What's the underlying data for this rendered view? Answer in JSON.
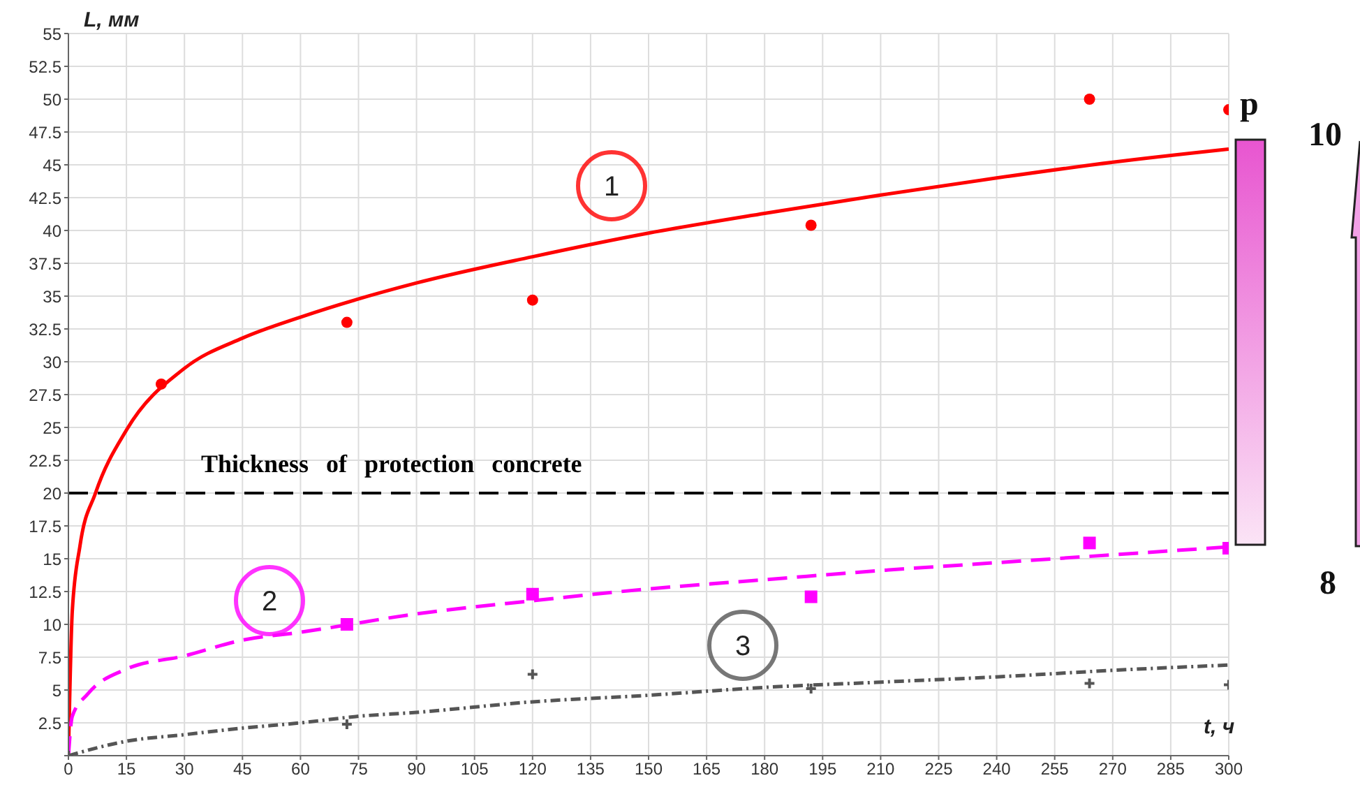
{
  "chart_data": {
    "type": "line",
    "xlabel": "t, ч",
    "ylabel": "L, мм",
    "xlim": [
      0,
      300
    ],
    "ylim": [
      0,
      55
    ],
    "xticks": [
      0,
      15,
      30,
      45,
      60,
      75,
      90,
      105,
      120,
      135,
      150,
      165,
      180,
      195,
      210,
      225,
      240,
      255,
      270,
      285,
      300
    ],
    "yticks": [
      {
        "value": 0,
        "label": null
      },
      2.5,
      5,
      7.5,
      10,
      12.5,
      15,
      17.5,
      20,
      22.5,
      25,
      27.5,
      30,
      32.5,
      35,
      37.5,
      40,
      42.5,
      45,
      47.5,
      50,
      52.5,
      55
    ],
    "grid": true,
    "series": [
      {
        "color": "#ff0000",
        "line_style": "solid",
        "marker": "none",
        "x": [
          0,
          1,
          3,
          7,
          15,
          30,
          45,
          60,
          90,
          120,
          150,
          180,
          210,
          240,
          270,
          300
        ],
        "values": [
          0,
          11,
          16,
          20,
          24.8,
          29.5,
          31.8,
          33.4,
          36,
          38,
          39.8,
          41.3,
          42.7,
          44,
          45.2,
          46.2
        ]
      },
      {
        "color": "#ff00ff",
        "line_style": "dashed",
        "marker": "none",
        "x": [
          0,
          1,
          5,
          15,
          30,
          45,
          60,
          90,
          120,
          150,
          180,
          210,
          240,
          270,
          300
        ],
        "values": [
          0,
          3,
          4.7,
          6.6,
          7.6,
          8.8,
          9.4,
          10.8,
          11.8,
          12.7,
          13.4,
          14.1,
          14.7,
          15.3,
          15.9
        ]
      },
      {
        "color": "#555555",
        "line_style": "dotted",
        "marker": "none",
        "x": [
          0,
          15,
          30,
          45,
          60,
          75,
          90,
          120,
          150,
          180,
          210,
          240,
          270,
          300
        ],
        "values": [
          0,
          1.1,
          1.6,
          2.1,
          2.5,
          3,
          3.3,
          4.1,
          4.6,
          5.2,
          5.6,
          6,
          6.5,
          6.9
        ]
      },
      {
        "type": "scatter",
        "color": "#ff0000",
        "marker": "circle",
        "x": [
          24,
          72,
          120,
          192,
          264,
          300
        ],
        "values": [
          28.3,
          33,
          34.7,
          40.4,
          50,
          49.2
        ]
      },
      {
        "type": "scatter",
        "color": "#ff00ff",
        "marker": "square",
        "x": [
          72,
          120,
          192,
          264,
          300
        ],
        "values": [
          10,
          12.3,
          12.1,
          16.2,
          15.8
        ]
      },
      {
        "type": "scatter",
        "color": "#555555",
        "marker": "cross",
        "x": [
          0,
          72,
          120,
          192,
          264,
          300
        ],
        "values": [
          0,
          2.4,
          6.2,
          5.1,
          5.5,
          5.4
        ]
      }
    ],
    "ref_lines": [
      {
        "axis": "y",
        "value": 20,
        "label": "Thickness of protection concrete",
        "color": "#000000",
        "line_style": "dashed"
      }
    ],
    "annotations": [
      "1",
      "2",
      "3",
      "p",
      "10",
      "8"
    ]
  }
}
